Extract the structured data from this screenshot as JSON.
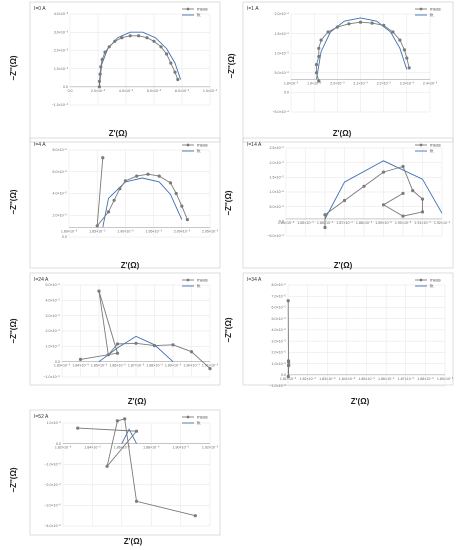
{
  "colors": {
    "meas": "#7a7a7a",
    "fit": "#3f6fb4",
    "grid": "#e4e4e4",
    "frame": "#c8c8c8"
  },
  "chart_data": [
    {
      "type": "line",
      "panel_label": "I=0 A",
      "xlabel": "Z'(Ω)",
      "ylabel": "−Z''(Ω)",
      "xlim": [
        0,
        0.01
      ],
      "ylim": [
        -0.001,
        0.004
      ],
      "xticks": [
        "0.0",
        "2.0×10⁻³",
        "4.0×10⁻³",
        "6.0×10⁻³",
        "8.0×10⁻³",
        "1.0×10⁻²"
      ],
      "yticks": [
        "−1.0×10⁻³",
        "0.0",
        "1.0×10⁻³",
        "2.0×10⁻³",
        "3.0×10⁻³",
        "4.0×10⁻³"
      ],
      "legend": "top-right",
      "grid": true,
      "series": [
        {
          "name": "meas",
          "x": [
            0.0021,
            0.0021,
            0.00215,
            0.0022,
            0.0023,
            0.0025,
            0.0028,
            0.0032,
            0.0037,
            0.0043,
            0.0049,
            0.0055,
            0.006,
            0.0065,
            0.0069,
            0.0072,
            0.0075,
            0.0077
          ],
          "y": [
            0.0,
            0.0003,
            0.0007,
            0.0011,
            0.0015,
            0.0019,
            0.0022,
            0.0025,
            0.0027,
            0.0028,
            0.0028,
            0.0027,
            0.0025,
            0.0022,
            0.0018,
            0.0013,
            0.0008,
            0.0004
          ]
        },
        {
          "name": "fit",
          "x": [
            0.0021,
            0.00225,
            0.0027,
            0.0034,
            0.0043,
            0.0052,
            0.0061,
            0.0069,
            0.0075,
            0.0079
          ],
          "y": [
            0.0,
            0.0012,
            0.0021,
            0.0027,
            0.003,
            0.003,
            0.0027,
            0.0021,
            0.0013,
            0.0004
          ]
        }
      ]
    },
    {
      "type": "line",
      "panel_label": "I=1 A",
      "xlabel": "Z'(Ω)",
      "ylabel": "−Z''(Ω)",
      "xlim": [
        0.0018,
        0.0024
      ],
      "ylim": [
        -1e-05,
        2e-05
      ],
      "xticks": [
        "1.8×10⁻³",
        "1.9×10⁻³",
        "2.0×10⁻³",
        "2.1×10⁻³",
        "2.2×10⁻³",
        "2.3×10⁻³",
        "2.4×10⁻³"
      ],
      "yticks": [
        "−5.0×10⁻⁶",
        "0.0",
        "5.0×10⁻⁶",
        "1.0×10⁻⁵",
        "1.5×10⁻⁵",
        "2.0×10⁻⁵"
      ],
      "legend": "top-right",
      "grid": true,
      "series": [
        {
          "name": "meas",
          "x": [
            0.00192,
            0.00191,
            0.00191,
            0.00192,
            0.00192,
            0.00193,
            0.00196,
            0.002,
            0.00205,
            0.0021,
            0.00215,
            0.0022,
            0.00224,
            0.00227,
            0.00229,
            0.0023,
            0.00231
          ],
          "y": [
            -5e-07,
            2e-06,
            4.5e-06,
            7e-06,
            9.5e-06,
            1.2e-05,
            1.45e-05,
            1.6e-05,
            1.7e-05,
            1.75e-05,
            1.72e-05,
            1.65e-05,
            1.45e-05,
            1.2e-05,
            9e-06,
            6.5e-06,
            3.5e-06
          ]
        },
        {
          "name": "fit",
          "x": [
            0.00191,
            0.00193,
            0.00197,
            0.00203,
            0.0021,
            0.00217,
            0.00223,
            0.00227,
            0.0023
          ],
          "y": [
            0.0,
            8.5e-06,
            1.45e-05,
            1.78e-05,
            1.88e-05,
            1.78e-05,
            1.45e-05,
            9.5e-06,
            3e-06
          ]
        }
      ]
    },
    {
      "type": "line",
      "panel_label": "I=4 A",
      "xlabel": "Z'(Ω)",
      "ylabel": "−Z''(Ω)",
      "xlim": [
        0.0018,
        0.00205
      ],
      "ylim": [
        -1e-05,
        8e-05
      ],
      "xticks": [
        "1.80×10⁻³",
        "1.85×10⁻³",
        "1.90×10⁻³",
        "1.95×10⁻³",
        "2.00×10⁻³",
        "2.05×10⁻³"
      ],
      "yticks": [
        "0.0",
        "2.0×10⁻⁵",
        "4.0×10⁻⁵",
        "6.0×10⁻⁵",
        "8.0×10⁻⁵"
      ],
      "legend": "top-right",
      "grid": true,
      "series": [
        {
          "name": "meas",
          "x": [
            0.00186,
            0.00185,
            0.00187,
            0.00188,
            0.00189,
            0.0019,
            0.00192,
            0.00194,
            0.00196,
            0.00198,
            0.00199,
            0.002,
            0.00201
          ],
          "y": [
            7.2e-05,
            1.5e-06,
            1.6e-05,
            2.8e-05,
            4e-05,
            4.8e-05,
            5.3e-05,
            5.5e-05,
            5.3e-05,
            4.6e-05,
            3.5e-05,
            2.2e-05,
            8e-06
          ]
        },
        {
          "name": "fit",
          "x": [
            0.00186,
            0.00187,
            0.0019,
            0.00193,
            0.00196,
            0.00198,
            0.002
          ],
          "y": [
            0.0,
            3e-05,
            4.7e-05,
            5.1e-05,
            4.7e-05,
            3.4e-05,
            8e-06
          ]
        }
      ]
    },
    {
      "type": "line",
      "panel_label": "I=14 A",
      "xlabel": "Z'(Ω)",
      "ylabel": "−Z''(Ω)",
      "xlim": [
        0.00184,
        0.00192
      ],
      "ylim": [
        -6e-06,
        2.5e-05
      ],
      "xticks": [
        "1.84×10⁻³",
        "1.85×10⁻³",
        "1.86×10⁻³",
        "1.87×10⁻³",
        "1.88×10⁻³",
        "1.89×10⁻³",
        "1.90×10⁻³",
        "1.91×10⁻³",
        "1.92×10⁻³"
      ],
      "yticks": [
        "−5.0×10⁻⁶",
        "0.0",
        "5.0×10⁻⁶",
        "1.0×10⁻⁵",
        "1.5×10⁻⁵",
        "2.0×10⁻⁵",
        "2.5×10⁻⁵"
      ],
      "legend": "top-right",
      "grid": true,
      "series": [
        {
          "name": "meas",
          "x": [
            0.00186,
            0.00186,
            0.00187,
            0.00188,
            0.00189,
            0.0019,
            0.001905,
            0.00191,
            0.00191,
            0.0019,
            0.00189,
            0.0019
          ],
          "y": [
            -3e-06,
            1.5e-06,
            6.5e-06,
            1.15e-05,
            1.65e-05,
            1.85e-05,
            1e-05,
            7e-06,
            2.5e-06,
            1e-06,
            5e-06,
            9e-06
          ]
        },
        {
          "name": "fit",
          "x": [
            0.00186,
            0.00187,
            0.00189,
            0.00191,
            0.00192
          ],
          "y": [
            0.0,
            1.3e-05,
            2.05e-05,
            1.4e-05,
            2e-06
          ]
        }
      ]
    },
    {
      "type": "line",
      "panel_label": "I=24 A",
      "xlabel": "Z'(Ω)",
      "ylabel": "−Z''(Ω)",
      "xlim": [
        0.00183,
        0.00191
      ],
      "ylim": [
        -1e-05,
        5e-05
      ],
      "xticks": [
        "1.83×10⁻³",
        "1.84×10⁻³",
        "1.85×10⁻³",
        "1.86×10⁻³",
        "1.87×10⁻³",
        "1.88×10⁻³",
        "1.89×10⁻³",
        "1.90×10⁻³",
        "1.91×10⁻³"
      ],
      "yticks": [
        "−1.0×10⁻⁵",
        "0.0",
        "1.0×10⁻⁵",
        "2.0×10⁻⁵",
        "3.0×10⁻⁵",
        "4.0×10⁻⁵",
        "5.0×10⁻⁵"
      ],
      "legend": "top-right",
      "grid": true,
      "series": [
        {
          "name": "meas",
          "x": [
            0.00184,
            0.00186,
            0.00185,
            0.001855,
            0.00186,
            0.00187,
            0.00188,
            0.00189,
            0.0019,
            0.00191
          ],
          "y": [
            1.5e-06,
            5.5e-06,
            4.6e-05,
            4.5e-06,
            1.15e-05,
            1.2e-05,
            1.05e-05,
            1.1e-05,
            6.5e-06,
            -4.5e-06
          ]
        },
        {
          "name": "fit",
          "x": [
            0.00185,
            0.00186,
            0.00187,
            0.00188,
            0.00189
          ],
          "y": [
            0.0,
            9e-06,
            1.65e-05,
            1.1e-05,
            0.0
          ]
        }
      ]
    },
    {
      "type": "line",
      "panel_label": "I=34 A",
      "xlabel": "Z'(Ω)",
      "ylabel": "−Z''(Ω)",
      "xlim": [
        0.00181,
        0.0189
      ],
      "ylim": [
        -1e-05,
        8e-05
      ],
      "xticks": [
        "1.81×10⁻³",
        "1.82×10⁻³",
        "1.83×10⁻³",
        "1.84×10⁻³",
        "1.85×10⁻³",
        "1.86×10⁻³",
        "1.87×10⁻³",
        "1.88×10⁻³",
        "1.89×10⁻³"
      ],
      "yticks": [
        "−1.0×10⁻⁵",
        "0.0",
        "1.0×10⁻⁵",
        "2.0×10⁻⁵",
        "3.0×10⁻⁵",
        "4.0×10⁻⁵",
        "5.0×10⁻⁵",
        "6.0×10⁻⁵",
        "7.0×10⁻⁵",
        "8.0×10⁻⁵"
      ],
      "legend": "top-right",
      "grid": true,
      "series": [
        {
          "name": "meas",
          "x": [
            0.00183,
            0.00186,
            0.00184,
            0.00187,
            0.00188,
            0.00189
          ],
          "y": [
            6.6e-05,
            1.25e-05,
            -1.5e-06,
            1.15e-05,
            8e-06,
            9e-06
          ]
        },
        {
          "name": "fit",
          "x": [
            0.00184,
            0.00186,
            0.00188
          ],
          "y": [
            0.0,
            1.3e-05,
            0.0
          ]
        }
      ]
    },
    {
      "type": "line",
      "panel_label": "I=52 A",
      "xlabel": "Z'(Ω)",
      "ylabel": "−Z''(Ω)",
      "xlim": [
        0.00182,
        0.00192
      ],
      "ylim": [
        -4e-06,
        1e-06
      ],
      "xticks": [
        "1.82×10⁻³",
        "1.84×10⁻³",
        "1.86×10⁻³",
        "1.88×10⁻³",
        "1.90×10⁻³",
        "1.92×10⁻³"
      ],
      "yticks": [
        "−4.0×10⁻⁶",
        "−3.0×10⁻⁶",
        "−2.0×10⁻⁶",
        "−1.0×10⁻⁶",
        "0.0",
        "1.0×10⁻⁶"
      ],
      "legend": "top-right",
      "grid": true,
      "series": [
        {
          "name": "meas",
          "x": [
            0.00183,
            0.00187,
            0.00185,
            0.001857,
            0.001862,
            0.00187,
            0.00191
          ],
          "y": [
            7.5e-07,
            6e-07,
            -1.1e-06,
            1.1e-06,
            1.2e-06,
            -2.8e-06,
            -3.5e-06
          ]
        },
        {
          "name": "fit",
          "x": [
            0.00186,
            0.001865,
            0.00187
          ],
          "y": [
            0.0,
            7e-07,
            0.0
          ]
        }
      ]
    }
  ]
}
